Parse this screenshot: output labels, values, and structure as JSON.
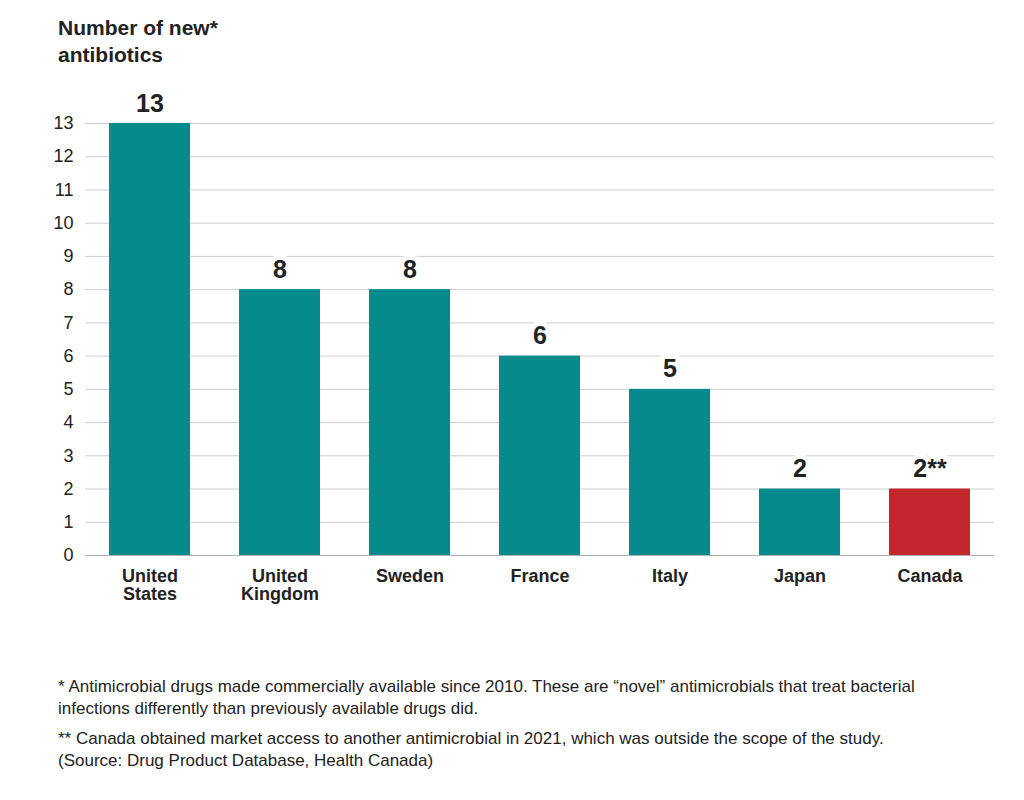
{
  "chart_data": {
    "type": "bar",
    "ylabel": "Number of new* antibiotics",
    "categories": [
      "United States",
      "United Kingdom",
      "Sweden",
      "France",
      "Italy",
      "Japan",
      "Canada"
    ],
    "values": [
      13,
      8,
      8,
      6,
      5,
      2,
      2
    ],
    "value_labels": [
      "13",
      "8",
      "8",
      "6",
      "5",
      "2",
      "2**"
    ],
    "colors": [
      "#078a8c",
      "#078a8c",
      "#078a8c",
      "#078a8c",
      "#078a8c",
      "#078a8c",
      "#c1272d"
    ],
    "ylim": [
      0,
      13
    ],
    "yticks": [
      0,
      1,
      2,
      3,
      4,
      5,
      6,
      7,
      8,
      9,
      10,
      11,
      12,
      13
    ],
    "grid": true,
    "data_labels": true,
    "annotations": [
      "* Antimicrobial drugs made commercially available since 2010. These are “novel” antimicrobials that treat bacterial infections differently than previously available drugs did.",
      "** Canada obtained market access to another antimicrobial in 2021, which was outside the scope of the study.",
      "(Source: Drug Product Database, Health Canada)"
    ]
  }
}
